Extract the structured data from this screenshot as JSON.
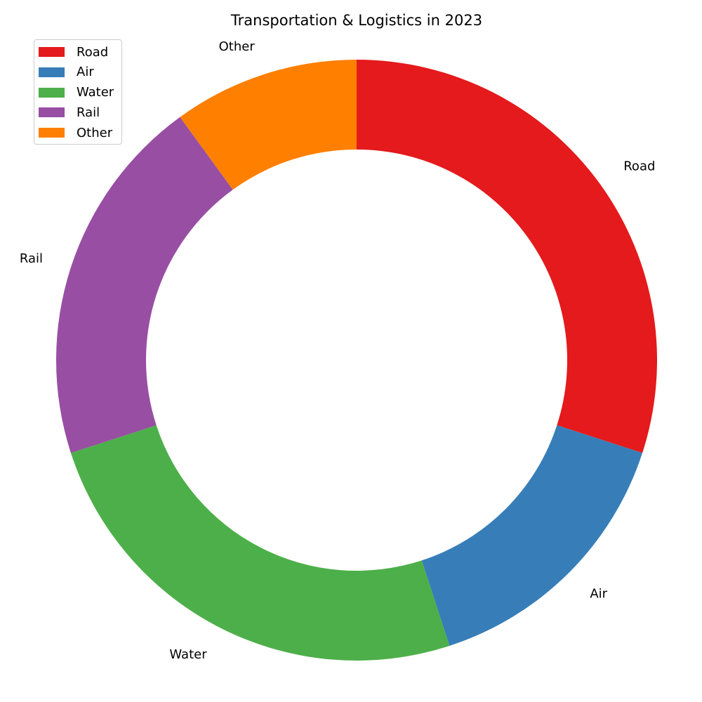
{
  "chart_data": {
    "type": "pie",
    "variant": "donut",
    "title": "Transportation & Logistics in 2023",
    "categories": [
      "Road",
      "Air",
      "Water",
      "Rail",
      "Other"
    ],
    "values": [
      30,
      15,
      25,
      20,
      10
    ],
    "colors": [
      "#e41a1c",
      "#377eb8",
      "#4daf4a",
      "#984ea3",
      "#ff7f00"
    ],
    "legend_position": "top-left",
    "start_angle": 90,
    "direction": "clockwise"
  }
}
